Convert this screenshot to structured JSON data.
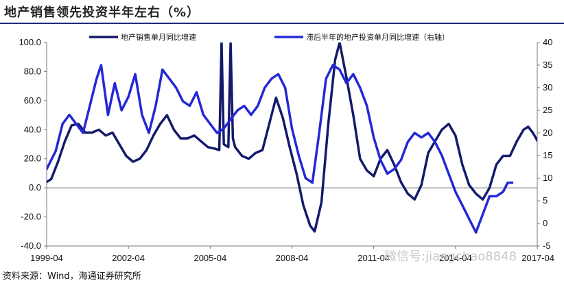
{
  "title": "地产销售领先投资半年左右（%）",
  "source": "资料来源：Wind，海通证券研究所",
  "watermark": "微信号:jiangchao8848",
  "chart_data": {
    "type": "line",
    "x_tick_labels": [
      "1999-04",
      "2002-04",
      "2005-04",
      "2008-04",
      "2011-04",
      "2014-04",
      "2017-04"
    ],
    "x_range": [
      "1999-04",
      "2017-04"
    ],
    "y_left": {
      "ticks": [
        "100.0",
        "80.0",
        "60.0",
        "40.0",
        "20.0",
        "0.0",
        "-20.0",
        "-40.0"
      ],
      "range": [
        -40,
        100
      ]
    },
    "y_right": {
      "ticks": [
        "40",
        "35",
        "30",
        "25",
        "20",
        "15",
        "10",
        "5",
        "0",
        "-5"
      ],
      "range": [
        -5,
        40
      ]
    },
    "grid": false,
    "legend_position": "top",
    "series": [
      {
        "name": "地产销售单月同比增速",
        "axis": "left",
        "color": "#141a6b",
        "points": [
          [
            "1999-04",
            4
          ],
          [
            "1999-06",
            6
          ],
          [
            "1999-09",
            18
          ],
          [
            "1999-12",
            32
          ],
          [
            "2000-03",
            43
          ],
          [
            "2000-06",
            44
          ],
          [
            "2000-09",
            38
          ],
          [
            "2000-12",
            38
          ],
          [
            "2001-03",
            40
          ],
          [
            "2001-06",
            36
          ],
          [
            "2001-09",
            38
          ],
          [
            "2001-12",
            30
          ],
          [
            "2002-03",
            22
          ],
          [
            "2002-06",
            18
          ],
          [
            "2002-09",
            20
          ],
          [
            "2002-12",
            26
          ],
          [
            "2003-03",
            36
          ],
          [
            "2003-06",
            44
          ],
          [
            "2003-09",
            50
          ],
          [
            "2003-12",
            40
          ],
          [
            "2004-03",
            34
          ],
          [
            "2004-06",
            34
          ],
          [
            "2004-09",
            36
          ],
          [
            "2004-12",
            32
          ],
          [
            "2005-03",
            28
          ],
          [
            "2005-06",
            27
          ],
          [
            "2005-08",
            26
          ],
          [
            "2005-09",
            100
          ],
          [
            "2005-10",
            30
          ],
          [
            "2005-12",
            28
          ],
          [
            "2006-01",
            100
          ],
          [
            "2006-02",
            34
          ],
          [
            "2006-03",
            28
          ],
          [
            "2006-06",
            22
          ],
          [
            "2006-09",
            20
          ],
          [
            "2006-12",
            24
          ],
          [
            "2007-03",
            26
          ],
          [
            "2007-06",
            44
          ],
          [
            "2007-09",
            62
          ],
          [
            "2007-12",
            48
          ],
          [
            "2008-03",
            28
          ],
          [
            "2008-06",
            10
          ],
          [
            "2008-09",
            -12
          ],
          [
            "2008-12",
            -26
          ],
          [
            "2009-02",
            -30
          ],
          [
            "2009-05",
            -10
          ],
          [
            "2009-08",
            44
          ],
          [
            "2009-11",
            88
          ],
          [
            "2010-01",
            100
          ],
          [
            "2010-04",
            76
          ],
          [
            "2010-07",
            50
          ],
          [
            "2010-10",
            20
          ],
          [
            "2011-01",
            12
          ],
          [
            "2011-04",
            8
          ],
          [
            "2011-07",
            20
          ],
          [
            "2011-10",
            26
          ],
          [
            "2012-01",
            16
          ],
          [
            "2012-04",
            4
          ],
          [
            "2012-07",
            -4
          ],
          [
            "2012-10",
            -8
          ],
          [
            "2013-01",
            2
          ],
          [
            "2013-04",
            24
          ],
          [
            "2013-07",
            32
          ],
          [
            "2013-10",
            40
          ],
          [
            "2014-01",
            44
          ],
          [
            "2014-04",
            36
          ],
          [
            "2014-07",
            16
          ],
          [
            "2014-10",
            2
          ],
          [
            "2015-01",
            -4
          ],
          [
            "2015-04",
            -8
          ],
          [
            "2015-07",
            0
          ],
          [
            "2015-10",
            16
          ],
          [
            "2016-01",
            22
          ],
          [
            "2016-04",
            22
          ],
          [
            "2016-07",
            32
          ],
          [
            "2016-10",
            40
          ],
          [
            "2016-12",
            42
          ],
          [
            "2017-02",
            38
          ],
          [
            "2017-05",
            30
          ],
          [
            "2017-07",
            30
          ],
          [
            "2017-08",
            22
          ]
        ]
      },
      {
        "name": "滞后半年的地产投资单月同比增速（右轴）",
        "axis": "right",
        "color": "#2328d6",
        "points": [
          [
            "1999-04",
            12
          ],
          [
            "1999-08",
            16
          ],
          [
            "1999-11",
            22
          ],
          [
            "2000-02",
            24
          ],
          [
            "2000-05",
            22
          ],
          [
            "2000-08",
            20
          ],
          [
            "2000-11",
            26
          ],
          [
            "2001-02",
            32
          ],
          [
            "2001-04",
            35
          ],
          [
            "2001-07",
            24
          ],
          [
            "2001-10",
            31
          ],
          [
            "2002-01",
            25
          ],
          [
            "2002-04",
            28
          ],
          [
            "2002-07",
            33
          ],
          [
            "2002-10",
            24
          ],
          [
            "2003-01",
            20
          ],
          [
            "2003-04",
            26
          ],
          [
            "2003-07",
            34
          ],
          [
            "2003-10",
            32
          ],
          [
            "2004-01",
            30
          ],
          [
            "2004-04",
            27
          ],
          [
            "2004-07",
            26
          ],
          [
            "2004-10",
            29
          ],
          [
            "2005-01",
            24
          ],
          [
            "2005-04",
            22
          ],
          [
            "2005-07",
            20
          ],
          [
            "2005-10",
            21
          ],
          [
            "2006-01",
            23
          ],
          [
            "2006-04",
            25
          ],
          [
            "2006-07",
            26
          ],
          [
            "2006-10",
            24
          ],
          [
            "2007-01",
            26
          ],
          [
            "2007-04",
            30
          ],
          [
            "2007-07",
            32
          ],
          [
            "2007-10",
            33
          ],
          [
            "2008-01",
            30
          ],
          [
            "2008-04",
            21
          ],
          [
            "2008-07",
            15
          ],
          [
            "2008-10",
            10
          ],
          [
            "2009-01",
            9
          ],
          [
            "2009-04",
            20
          ],
          [
            "2009-07",
            32
          ],
          [
            "2009-10",
            35
          ],
          [
            "2010-01",
            34
          ],
          [
            "2010-04",
            31
          ],
          [
            "2010-07",
            33
          ],
          [
            "2010-10",
            30
          ],
          [
            "2011-01",
            26
          ],
          [
            "2011-04",
            19
          ],
          [
            "2011-07",
            14
          ],
          [
            "2011-10",
            11
          ],
          [
            "2012-01",
            12
          ],
          [
            "2012-04",
            14
          ],
          [
            "2012-07",
            18
          ],
          [
            "2012-10",
            20
          ],
          [
            "2013-01",
            19
          ],
          [
            "2013-04",
            20
          ],
          [
            "2013-07",
            18
          ],
          [
            "2013-10",
            15
          ],
          [
            "2014-01",
            11
          ],
          [
            "2014-04",
            7
          ],
          [
            "2014-07",
            4
          ],
          [
            "2014-10",
            1
          ],
          [
            "2015-01",
            -2
          ],
          [
            "2015-04",
            2
          ],
          [
            "2015-07",
            6
          ],
          [
            "2015-10",
            6
          ],
          [
            "2016-01",
            7
          ],
          [
            "2016-03",
            9
          ],
          [
            "2016-05",
            9
          ]
        ]
      }
    ]
  }
}
